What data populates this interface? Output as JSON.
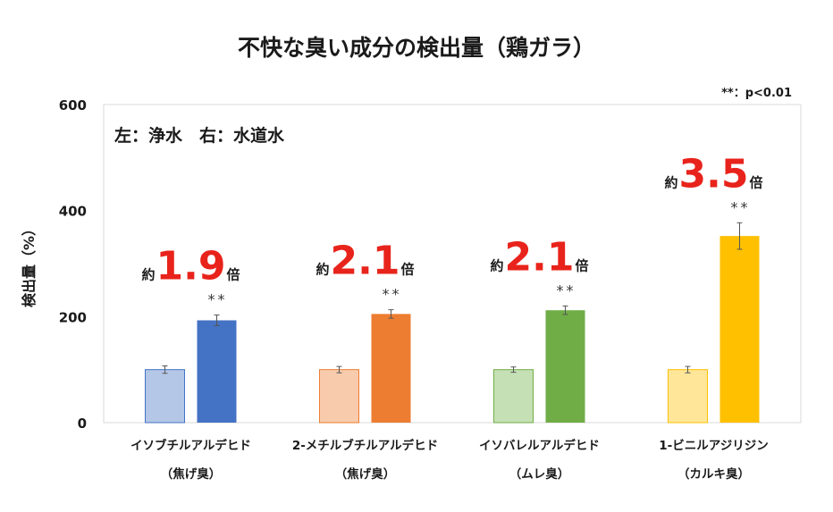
{
  "chart_data": {
    "type": "bar",
    "title": "不快な臭い成分の検出量（鶏ガラ）",
    "ylabel": "検出量（%）",
    "ylim": [
      0,
      600
    ],
    "yticks": [
      0,
      200,
      400,
      600
    ],
    "grid": false,
    "legend_note": "左：浄水　右：水道水",
    "significance_note": "**：p<0.01",
    "categories": [
      {
        "name": "イソブチルアルデヒド",
        "sub": "（焦げ臭）"
      },
      {
        "name": "2-メチルブチルアルデヒド",
        "sub": "（焦げ臭）"
      },
      {
        "name": "イソバレルアルデヒド",
        "sub": "（ムレ臭）"
      },
      {
        "name": "1-ビニルアジリジン",
        "sub": "（カルキ臭）"
      }
    ],
    "series": [
      {
        "name": "浄水",
        "values": [
          100,
          100,
          100,
          100
        ],
        "errors": [
          7,
          6,
          5,
          6
        ]
      },
      {
        "name": "水道水",
        "values": [
          193,
          205,
          212,
          352
        ],
        "errors": [
          10,
          8,
          8,
          25
        ]
      }
    ],
    "colors": {
      "purified": [
        "#b4c7e7",
        "#f8cbad",
        "#c5e0b4",
        "#ffe699"
      ],
      "purified_border": [
        "#4472c4",
        "#ed7d31",
        "#70ad47",
        "#ffc000"
      ],
      "tap": [
        "#4472c4",
        "#ed7d31",
        "#70ad47",
        "#ffc000"
      ],
      "annotation": "#e8231b"
    },
    "significance": [
      "**",
      "**",
      "**",
      "**"
    ],
    "annotations": [
      {
        "prefix": "約",
        "value": "1.9",
        "suffix": "倍"
      },
      {
        "prefix": "約",
        "value": "2.1",
        "suffix": "倍"
      },
      {
        "prefix": "約",
        "value": "2.1",
        "suffix": "倍"
      },
      {
        "prefix": "約",
        "value": "3.5",
        "suffix": "倍"
      }
    ]
  }
}
